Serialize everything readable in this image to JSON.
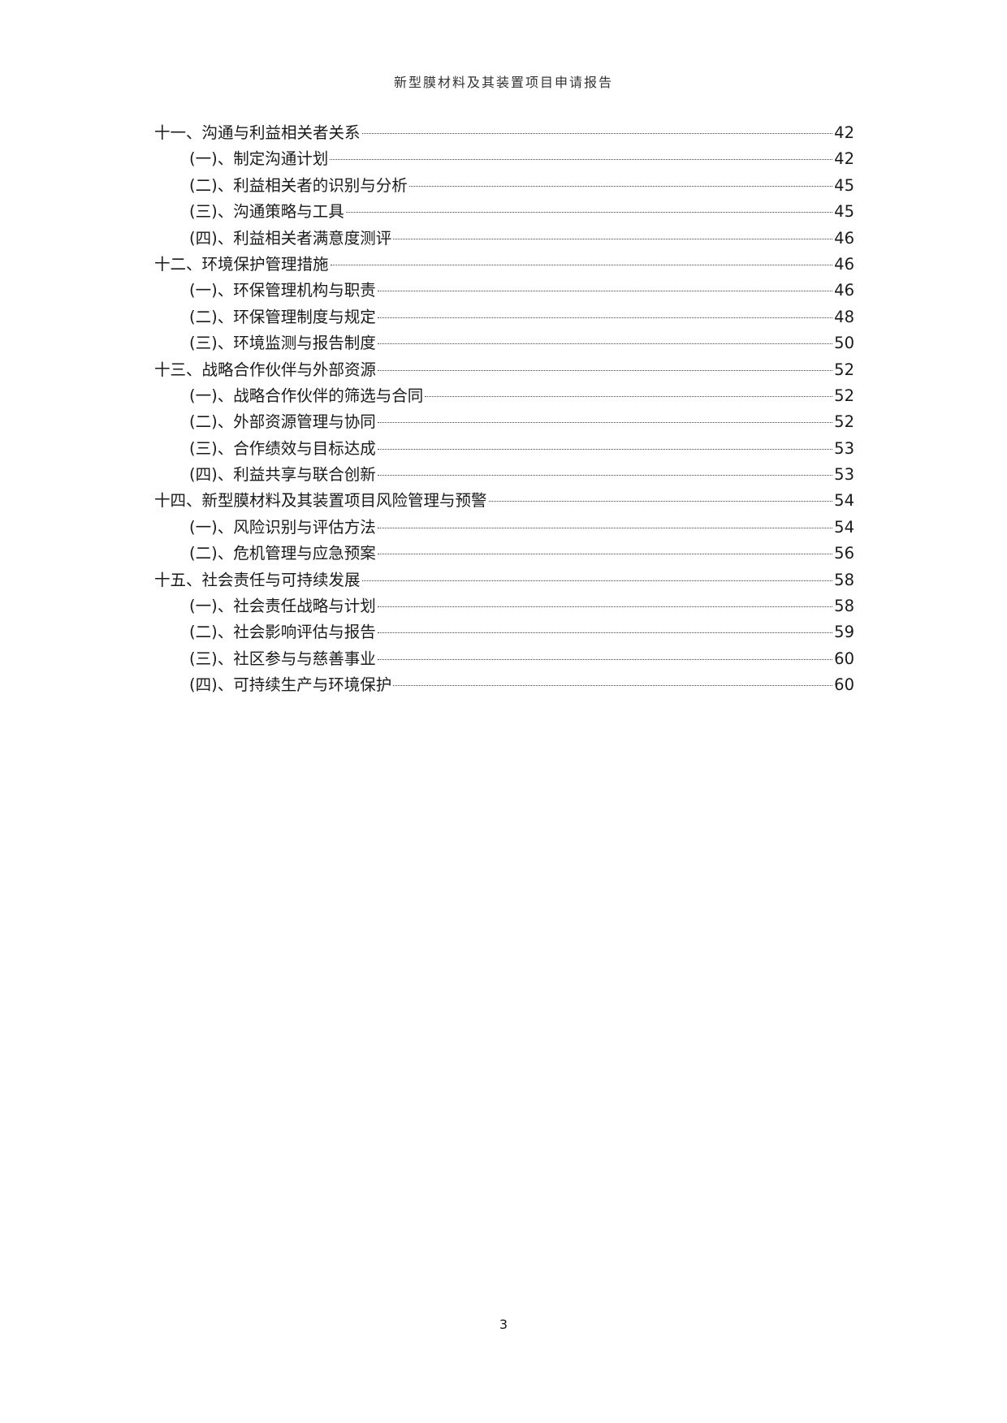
{
  "header": {
    "title": "新型膜材料及其装置项目申请报告"
  },
  "toc": [
    {
      "level": 1,
      "title": "十一、沟通与利益相关者关系",
      "page": "42"
    },
    {
      "level": 2,
      "title": "(一)、制定沟通计划",
      "page": "42"
    },
    {
      "level": 2,
      "title": "(二)、利益相关者的识别与分析",
      "page": "45"
    },
    {
      "level": 2,
      "title": "(三)、沟通策略与工具",
      "page": "45"
    },
    {
      "level": 2,
      "title": "(四)、利益相关者满意度测评",
      "page": "46"
    },
    {
      "level": 1,
      "title": "十二、环境保护管理措施",
      "page": "46"
    },
    {
      "level": 2,
      "title": "(一)、环保管理机构与职责",
      "page": "46"
    },
    {
      "level": 2,
      "title": "(二)、环保管理制度与规定",
      "page": "48"
    },
    {
      "level": 2,
      "title": "(三)、环境监测与报告制度",
      "page": "50"
    },
    {
      "level": 1,
      "title": "十三、战略合作伙伴与外部资源",
      "page": "52"
    },
    {
      "level": 2,
      "title": "(一)、战略合作伙伴的筛选与合同",
      "page": "52"
    },
    {
      "level": 2,
      "title": "(二)、外部资源管理与协同",
      "page": "52"
    },
    {
      "level": 2,
      "title": "(三)、合作绩效与目标达成",
      "page": "53"
    },
    {
      "level": 2,
      "title": "(四)、利益共享与联合创新",
      "page": "53"
    },
    {
      "level": 1,
      "title": "十四、新型膜材料及其装置项目风险管理与预警",
      "page": "54"
    },
    {
      "level": 2,
      "title": "(一)、风险识别与评估方法",
      "page": "54"
    },
    {
      "level": 2,
      "title": "(二)、危机管理与应急预案",
      "page": "56"
    },
    {
      "level": 1,
      "title": "十五、社会责任与可持续发展",
      "page": "58"
    },
    {
      "level": 2,
      "title": "(一)、社会责任战略与计划",
      "page": "58"
    },
    {
      "level": 2,
      "title": "(二)、社会影响评估与报告",
      "page": "59"
    },
    {
      "level": 2,
      "title": "(三)、社区参与与慈善事业",
      "page": "60"
    },
    {
      "level": 2,
      "title": "(四)、可持续生产与环境保护",
      "page": "60"
    }
  ],
  "footer": {
    "page_number": "3"
  }
}
